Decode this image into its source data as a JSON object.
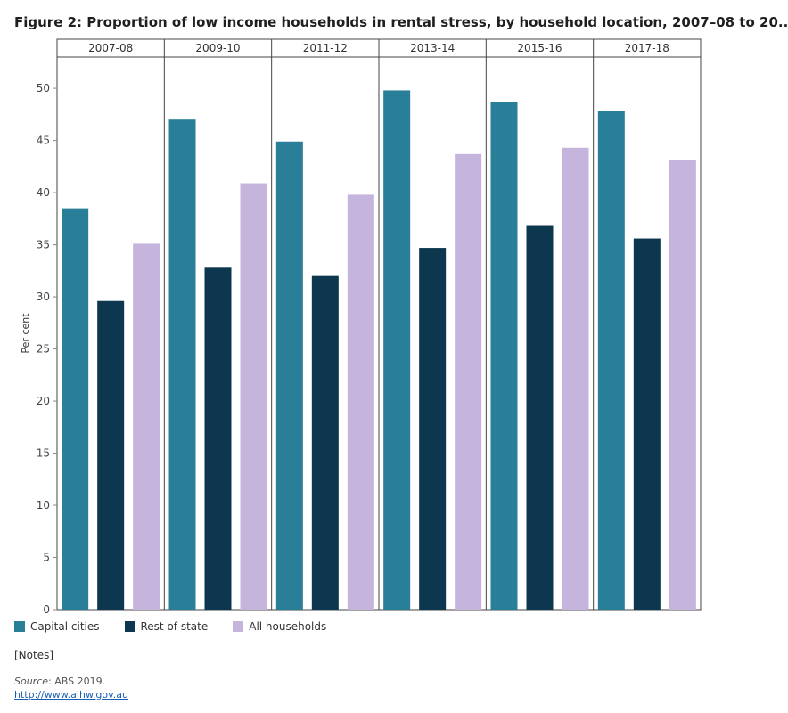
{
  "title": "Figure 2: Proportion of low income households in rental stress, by household location, 2007–08 to 20..",
  "chart_data": {
    "type": "bar",
    "panels": [
      "2007-08",
      "2009-10",
      "2011-12",
      "2013-14",
      "2015-16",
      "2017-18"
    ],
    "series": [
      {
        "name": "Capital cities",
        "color": "#2a7f98",
        "values": [
          38.5,
          47.0,
          44.9,
          49.8,
          48.7,
          47.8
        ]
      },
      {
        "name": "Rest of state",
        "color": "#0c374e",
        "values": [
          29.6,
          32.8,
          32.0,
          34.7,
          36.8,
          35.6
        ]
      },
      {
        "name": "All households",
        "color": "#c5b4dc",
        "values": [
          35.1,
          40.9,
          39.8,
          43.7,
          44.3,
          43.1
        ]
      }
    ],
    "ylabel": "Per cent",
    "xlabel": "",
    "ylim": [
      0,
      53
    ],
    "yticks": [
      0,
      5,
      10,
      15,
      20,
      25,
      30,
      35,
      40,
      45,
      50
    ],
    "grid": false,
    "legend_position": "bottom-left"
  },
  "legend": [
    {
      "label": "Capital cities",
      "color": "#2a7f98"
    },
    {
      "label": "Rest of state",
      "color": "#0c374e"
    },
    {
      "label": "All households",
      "color": "#c5b4dc"
    }
  ],
  "notes_label": "[Notes]",
  "source": {
    "prefix": "Source",
    "text": ": ABS 2019."
  },
  "link_text": "http://www.aihw.gov.au"
}
